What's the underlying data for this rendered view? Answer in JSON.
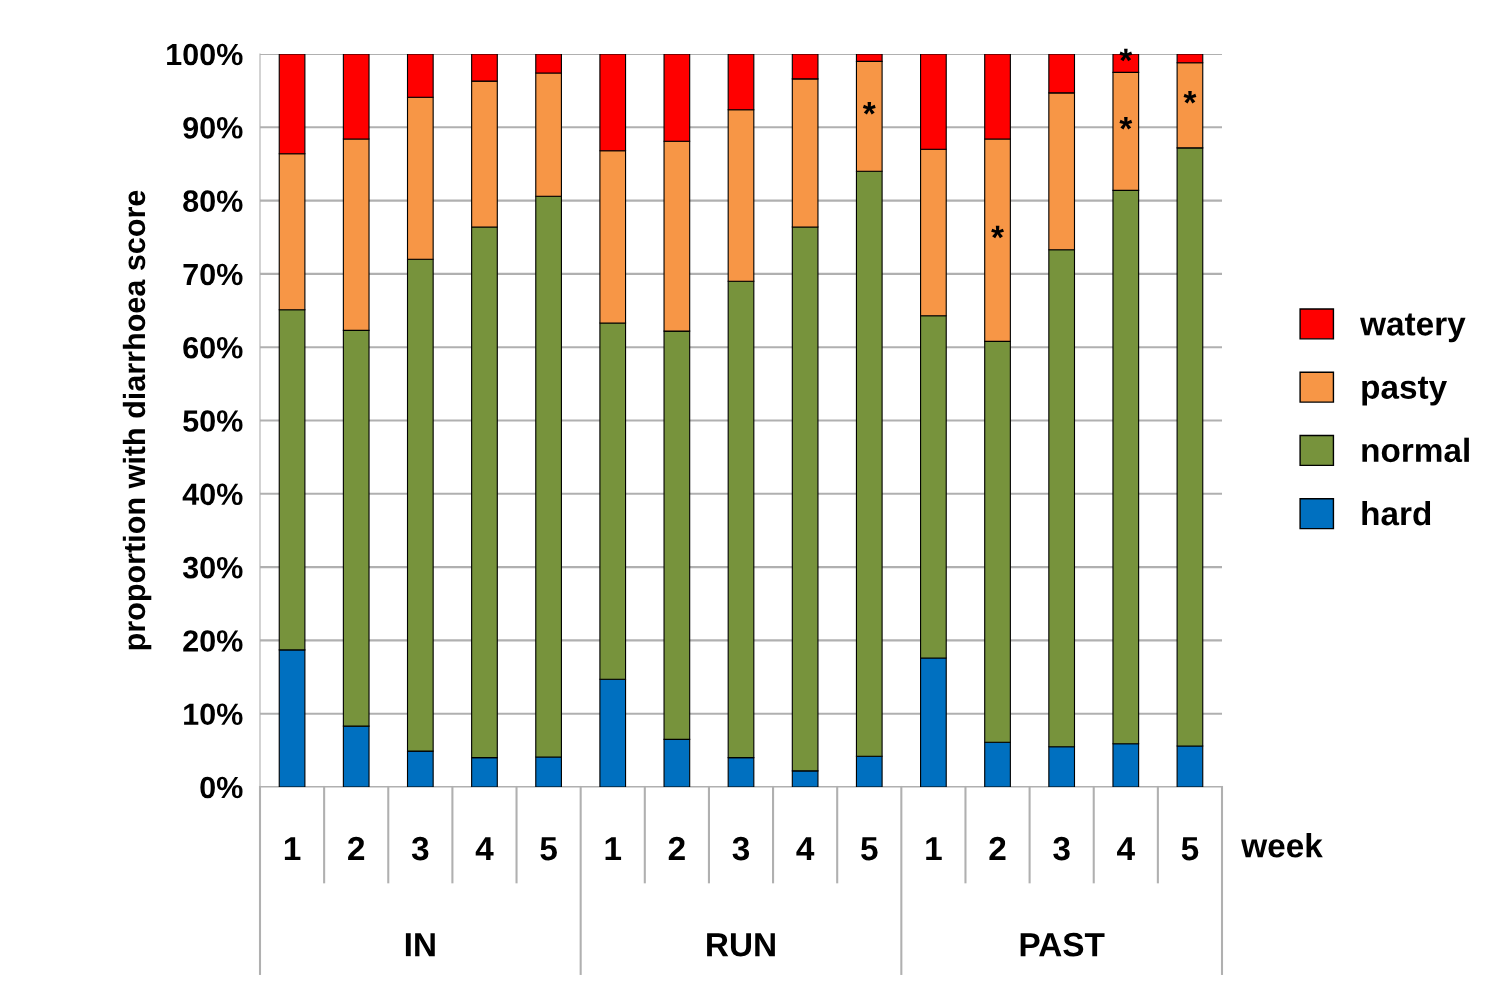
{
  "chart_data": {
    "type": "bar",
    "stacked": true,
    "ylabel": "proportion with diarrhoea score",
    "xlabel": "week",
    "categories": [
      "1",
      "2",
      "3",
      "4",
      "5",
      "1",
      "2",
      "3",
      "4",
      "5",
      "1",
      "2",
      "3",
      "4",
      "5"
    ],
    "series": [
      {
        "name": "hard",
        "color": "#0070c0",
        "values": [
          18.7,
          8.3,
          4.9,
          4.0,
          4.1,
          14.7,
          6.5,
          4.0,
          2.2,
          4.2,
          17.6,
          6.1,
          5.5,
          5.9,
          5.6
        ]
      },
      {
        "name": "normal",
        "color": "#77933c",
        "values": [
          46.4,
          54.0,
          67.1,
          72.4,
          76.5,
          48.6,
          55.7,
          65.0,
          74.2,
          79.8,
          46.7,
          54.7,
          67.8,
          75.5,
          81.6
        ]
      },
      {
        "name": "pasty",
        "color": "#f79646",
        "values": [
          21.3,
          26.1,
          22.1,
          19.9,
          16.8,
          23.5,
          25.9,
          23.4,
          20.2,
          15.0,
          22.7,
          27.6,
          21.4,
          16.1,
          11.6
        ],
        "value_labels": [
          null,
          null,
          null,
          null,
          null,
          null,
          null,
          null,
          null,
          "*",
          null,
          "*",
          null,
          "*",
          "*"
        ]
      },
      {
        "name": "watery",
        "color": "#ff0000",
        "values": [
          13.6,
          11.6,
          5.9,
          3.7,
          2.6,
          13.2,
          11.9,
          7.6,
          3.4,
          1.0,
          13.0,
          11.6,
          5.3,
          2.5,
          1.2
        ],
        "value_labels": [
          null,
          null,
          null,
          null,
          null,
          null,
          null,
          null,
          null,
          null,
          null,
          null,
          null,
          "*",
          null
        ]
      }
    ],
    "ylim": [
      0,
      100
    ],
    "yticks": [
      {
        "value": 0,
        "label": "0%"
      },
      {
        "value": 10,
        "label": "10%"
      },
      {
        "value": 20,
        "label": "20%"
      },
      {
        "value": 30,
        "label": "30%"
      },
      {
        "value": 40,
        "label": "40%"
      },
      {
        "value": 50,
        "label": "50%"
      },
      {
        "value": 60,
        "label": "60%"
      },
      {
        "value": 70,
        "label": "70%"
      },
      {
        "value": 80,
        "label": "80%"
      },
      {
        "value": 90,
        "label": "90%"
      },
      {
        "value": 100,
        "label": "100%"
      }
    ],
    "grid": "y",
    "legend": "right",
    "annotations": [
      "IN",
      "RUN",
      "PAST"
    ]
  }
}
